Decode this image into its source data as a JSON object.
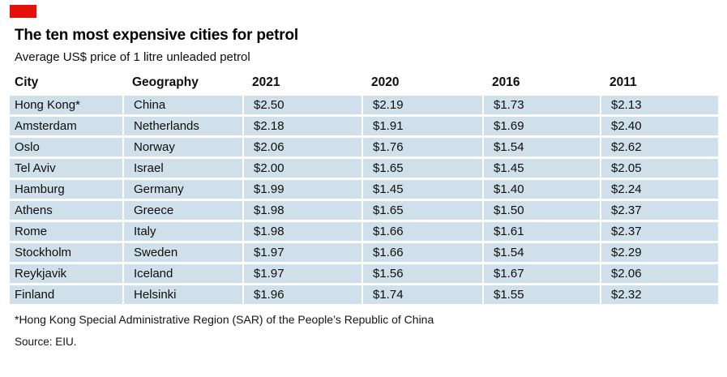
{
  "colors": {
    "accent": "#e3120b",
    "row_fill": "#d0e0eb",
    "text": "#0d0d0d"
  },
  "header": {
    "title": "The ten most expensive cities for petrol",
    "subtitle": "Average US$ price of 1 litre unleaded petrol"
  },
  "table": {
    "columns": [
      "City",
      "Geography",
      "2021",
      "2020",
      "2016",
      "2011"
    ],
    "rows": [
      [
        "Hong Kong*",
        "China",
        "$2.50",
        "$2.19",
        "$1.73",
        "$2.13"
      ],
      [
        "Amsterdam",
        "Netherlands",
        "$2.18",
        "$1.91",
        "$1.69",
        "$2.40"
      ],
      [
        "Oslo",
        "Norway",
        "$2.06",
        "$1.76",
        "$1.54",
        "$2.62"
      ],
      [
        "Tel Aviv",
        "Israel",
        "$2.00",
        "$1.65",
        "$1.45",
        "$2.05"
      ],
      [
        "Hamburg",
        "Germany",
        "$1.99",
        "$1.45",
        "$1.40",
        "$2.24"
      ],
      [
        "Athens",
        "Greece",
        "$1.98",
        "$1.65",
        "$1.50",
        "$2.37"
      ],
      [
        "Rome",
        "Italy",
        "$1.98",
        "$1.66",
        "$1.61",
        "$2.37"
      ],
      [
        "Stockholm",
        "Sweden",
        "$1.97",
        "$1.66",
        "$1.54",
        "$2.29"
      ],
      [
        "Reykjavik",
        "Iceland",
        "$1.97",
        "$1.56",
        "$1.67",
        "$2.06"
      ],
      [
        "Finland",
        "Helsinki",
        "$1.96",
        "$1.74",
        "$1.55",
        "$2.32"
      ]
    ]
  },
  "footnote": "*Hong Kong Special Administrative Region (SAR) of the People’s Republic of China",
  "source": "Source: EIU.",
  "chart_data": {
    "type": "table",
    "title": "The ten most expensive cities for petrol",
    "subtitle": "Average US$ price of 1 litre unleaded petrol",
    "unit": "US$ per litre of unleaded petrol",
    "columns": [
      "City",
      "Geography",
      "2021",
      "2020",
      "2016",
      "2011"
    ],
    "rows": [
      {
        "city": "Hong Kong*",
        "geography": "China",
        "2021": 2.5,
        "2020": 2.19,
        "2016": 1.73,
        "2011": 2.13
      },
      {
        "city": "Amsterdam",
        "geography": "Netherlands",
        "2021": 2.18,
        "2020": 1.91,
        "2016": 1.69,
        "2011": 2.4
      },
      {
        "city": "Oslo",
        "geography": "Norway",
        "2021": 2.06,
        "2020": 1.76,
        "2016": 1.54,
        "2011": 2.62
      },
      {
        "city": "Tel Aviv",
        "geography": "Israel",
        "2021": 2.0,
        "2020": 1.65,
        "2016": 1.45,
        "2011": 2.05
      },
      {
        "city": "Hamburg",
        "geography": "Germany",
        "2021": 1.99,
        "2020": 1.45,
        "2016": 1.4,
        "2011": 2.24
      },
      {
        "city": "Athens",
        "geography": "Greece",
        "2021": 1.98,
        "2020": 1.65,
        "2016": 1.5,
        "2011": 2.37
      },
      {
        "city": "Rome",
        "geography": "Italy",
        "2021": 1.98,
        "2020": 1.66,
        "2016": 1.61,
        "2011": 2.37
      },
      {
        "city": "Stockholm",
        "geography": "Sweden",
        "2021": 1.97,
        "2020": 1.66,
        "2016": 1.54,
        "2011": 2.29
      },
      {
        "city": "Reykjavik",
        "geography": "Iceland",
        "2021": 1.97,
        "2020": 1.56,
        "2016": 1.67,
        "2011": 2.06
      },
      {
        "city": "Finland",
        "geography": "Helsinki",
        "2021": 1.96,
        "2020": 1.74,
        "2016": 1.55,
        "2011": 2.32
      }
    ],
    "source": "EIU",
    "footnote": "*Hong Kong Special Administrative Region (SAR) of the People’s Republic of China"
  }
}
